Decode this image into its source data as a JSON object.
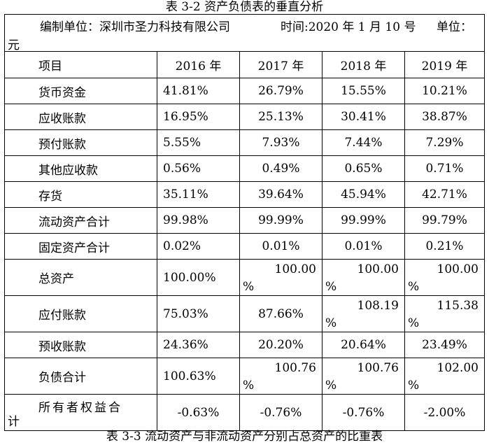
{
  "caption_top": "表 3-2  资产负债表的垂直分析",
  "info": {
    "unit": "编制单位：深圳市圣力科技有限公司",
    "date": "时间:2020 年 1 月 10 号",
    "currency_label": "单位：",
    "currency_unit": "元"
  },
  "headers": [
    "项目",
    "2016 年",
    "2017 年",
    "2018 年",
    "2019 年"
  ],
  "rows": [
    {
      "label": "货币资金",
      "values": [
        "41.81%",
        "26.79%",
        "15.55%",
        "10.21%"
      ]
    },
    {
      "label": "应收账款",
      "values": [
        "16.95%",
        "25.13%",
        "30.41%",
        "38.87%"
      ]
    },
    {
      "label": "预付账款",
      "values": [
        "5.55%",
        "7.93%",
        "7.44%",
        "7.29%"
      ]
    },
    {
      "label": "其他应收款",
      "values": [
        "0.56%",
        "0.49%",
        "0.65%",
        "0.71%"
      ]
    },
    {
      "label": "存货",
      "values": [
        "35.11%",
        "39.64%",
        "45.94%",
        "42.71%"
      ]
    },
    {
      "label": "流动资产合计",
      "values": [
        "99.98%",
        "99.99%",
        "99.99%",
        "99.79%"
      ]
    },
    {
      "label": "固定资产合计",
      "values": [
        "0.02%",
        "0.01%",
        "0.01%",
        "0.21%"
      ]
    },
    {
      "label": "总资产",
      "values": [
        "100.00%",
        "100.00",
        "100.00",
        "100.00"
      ]
    },
    {
      "label": "应付账款",
      "values": [
        "75.03%",
        "87.66%",
        "108.19",
        "115.38"
      ]
    },
    {
      "label": "预收账款",
      "values": [
        "24.36%",
        "20.20%",
        "20.64%",
        "23.49%"
      ]
    },
    {
      "label": "负债合计",
      "values": [
        "100.63%",
        "100.76",
        "100.76",
        "102.00"
      ]
    },
    {
      "label": "所有者权益合",
      "label_wrap": "计",
      "values": [
        "-0.63%",
        "-0.76%",
        "-0.76%",
        "-2.00%"
      ]
    }
  ],
  "percent_sign": "%",
  "caption_bottom": "表 3-3 流动资产与非流动资产分别占总资产的比重表"
}
